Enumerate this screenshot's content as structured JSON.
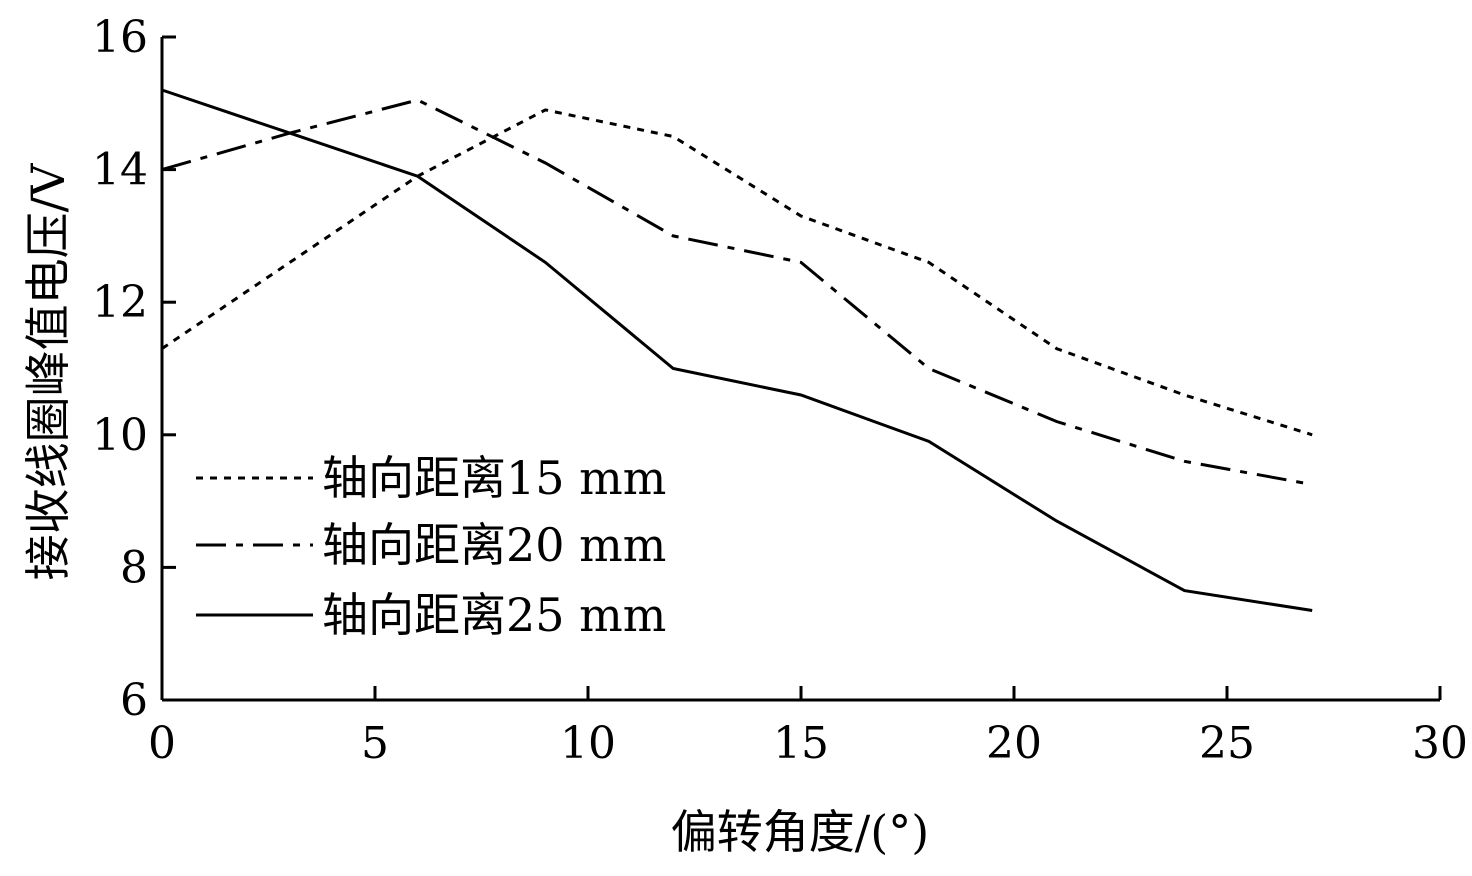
{
  "chart_data": {
    "type": "line",
    "title": "",
    "xlabel": "偏转角度/(°)",
    "ylabel": "接收线圈峰值电压/V",
    "xlim": [
      0,
      30
    ],
    "ylim": [
      6,
      16
    ],
    "x_ticks": [
      0,
      5,
      10,
      15,
      20,
      25,
      30
    ],
    "y_ticks": [
      6,
      8,
      10,
      12,
      14,
      16
    ],
    "grid": false,
    "legend_position": "left-center",
    "series": [
      {
        "name": "轴向距离15 mm",
        "dash": "dotted",
        "x": [
          0,
          3,
          6,
          9,
          12,
          15,
          18,
          21,
          24,
          27
        ],
        "y": [
          11.3,
          12.6,
          13.9,
          14.9,
          14.5,
          13.3,
          12.6,
          11.3,
          10.6,
          10.0
        ]
      },
      {
        "name": "轴向距离20 mm",
        "dash": "dash-dot",
        "x": [
          0,
          3,
          6,
          9,
          12,
          15,
          18,
          21,
          24,
          27
        ],
        "y": [
          14.0,
          14.55,
          15.05,
          14.1,
          13.0,
          12.6,
          11.0,
          10.2,
          9.6,
          9.25
        ]
      },
      {
        "name": "轴向距离25 mm",
        "dash": "solid",
        "x": [
          0,
          3,
          6,
          9,
          12,
          15,
          18,
          21,
          24,
          27
        ],
        "y": [
          15.2,
          14.55,
          13.9,
          12.6,
          11.0,
          10.6,
          9.9,
          8.7,
          7.65,
          7.35
        ]
      }
    ],
    "colors": {
      "line": "#000000",
      "axis": "#000000",
      "background": "#ffffff"
    }
  }
}
